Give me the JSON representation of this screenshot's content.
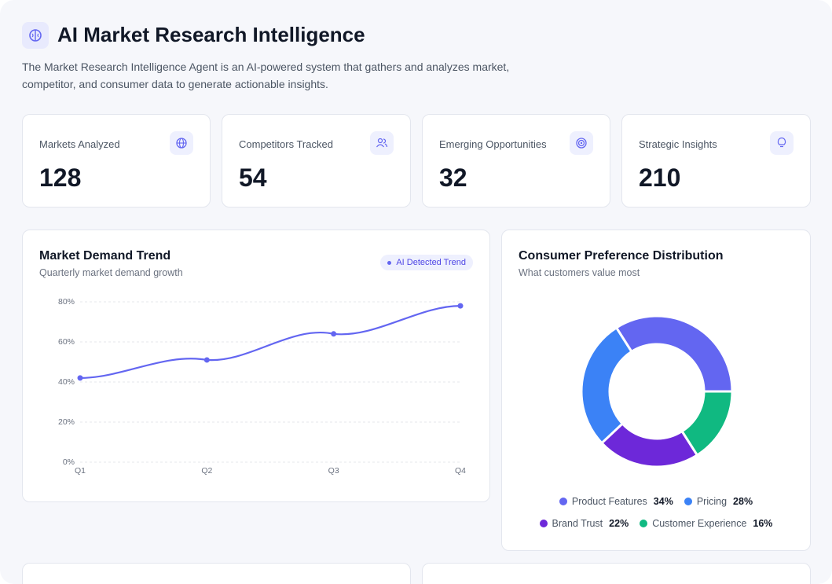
{
  "header": {
    "title": "AI Market Research Intelligence",
    "description": "The Market Research Intelligence Agent is an AI-powered system that gathers and analyzes market, competitor, and consumer data to generate actionable insights."
  },
  "stats": [
    {
      "label": "Markets Analyzed",
      "value": 128
    },
    {
      "label": "Competitors Tracked",
      "value": 54
    },
    {
      "label": "Emerging Opportunities",
      "value": 32
    },
    {
      "label": "Strategic Insights",
      "value": 210
    }
  ],
  "chart_data": [
    {
      "type": "line",
      "title": "Market Demand Trend",
      "subtitle": "Quarterly market demand growth",
      "badge": "AI Detected Trend",
      "categories": [
        "Q1",
        "Q2",
        "Q3",
        "Q4"
      ],
      "values": [
        42,
        51,
        64,
        78
      ],
      "color": "#6366f1",
      "ylim": [
        0,
        80
      ],
      "yticks": [
        {
          "value": 0,
          "label": "0%"
        },
        {
          "value": 20,
          "label": "20%"
        },
        {
          "value": 40,
          "label": "40%"
        },
        {
          "value": 60,
          "label": "60%"
        },
        {
          "value": 80,
          "label": "80%"
        }
      ],
      "grid": true
    },
    {
      "type": "pie",
      "title": "Consumer Preference Distribution",
      "subtitle": "What customers value most",
      "categories": [
        "Product Features",
        "Pricing",
        "Brand Trust",
        "Customer Experience"
      ],
      "values": [
        34,
        28,
        22,
        16
      ],
      "value_labels": [
        "34%",
        "28%",
        "22%",
        "16%"
      ],
      "colors": [
        "#6366f1",
        "#3b82f6",
        "#6d28d9",
        "#10b981"
      ]
    }
  ]
}
